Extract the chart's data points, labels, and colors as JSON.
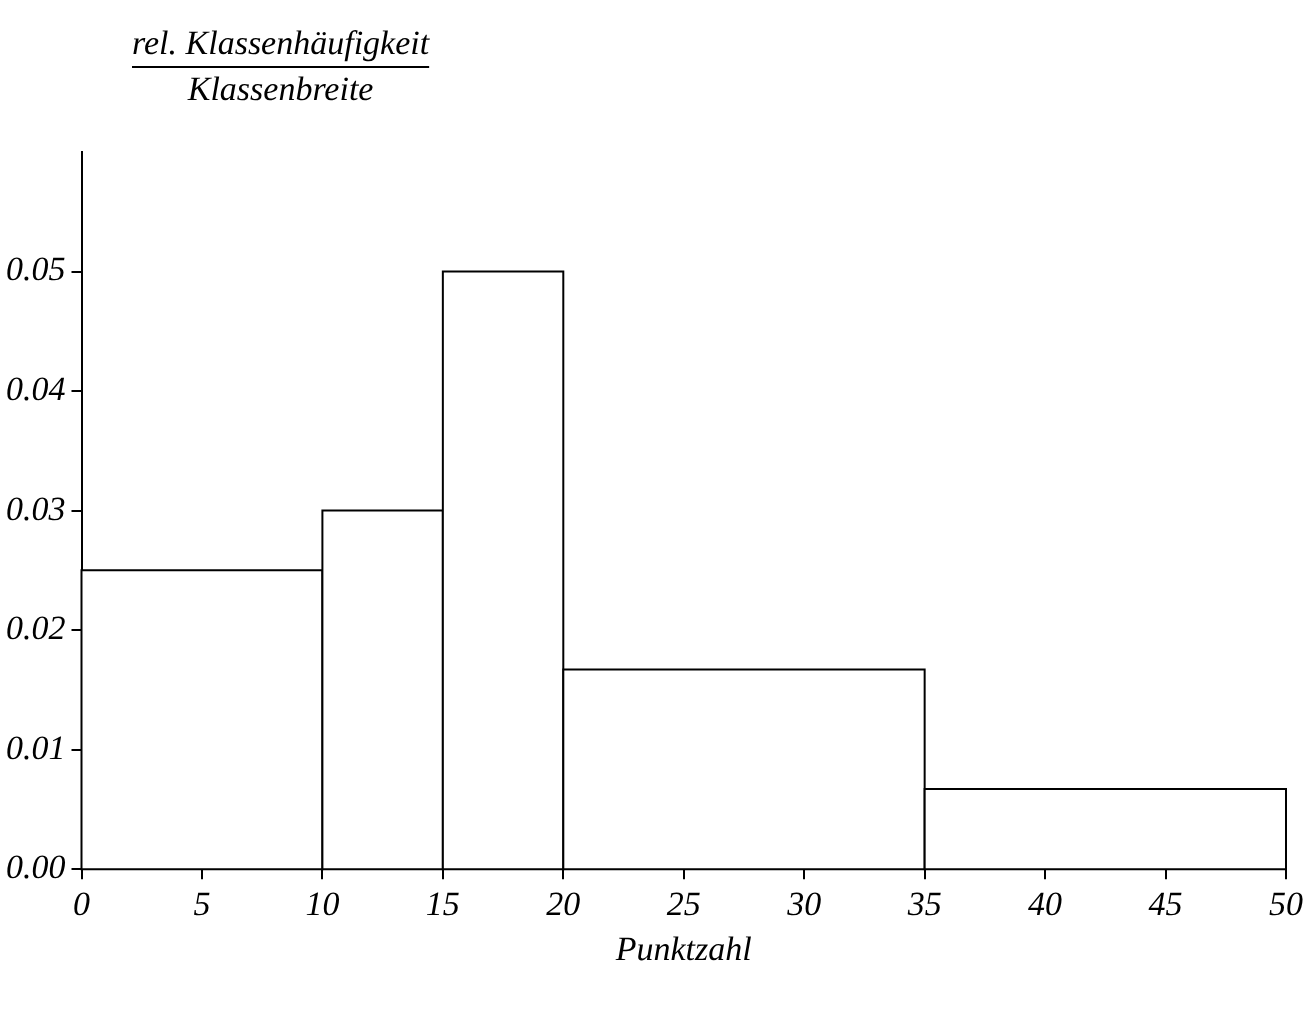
{
  "chart_data": {
    "type": "histogram",
    "ylabel": "rel. Klassenhäufigkeit Klassenbreite",
    "xlabel": "Punktzahl",
    "bins": [
      0,
      10,
      15,
      20,
      35,
      50
    ],
    "values": [
      0.025,
      0.03,
      0.05,
      0.0167,
      0.0067
    ],
    "color": "#ffffff",
    "xlim": [
      0,
      50
    ],
    "xticks": [
      0,
      5,
      10,
      15,
      20,
      25,
      30,
      35,
      40,
      45,
      50
    ],
    "ylim": [
      0,
      0.06
    ],
    "yticks": [
      {
        "value": 0,
        "label": "0.00"
      },
      {
        "value": 0.01,
        "label": "0.01"
      },
      {
        "value": 0.02,
        "label": "0.02"
      },
      {
        "value": 0.03,
        "label": "0.03"
      },
      {
        "value": 0.04,
        "label": "0.04"
      },
      {
        "value": 0.05,
        "label": "0.05"
      }
    ],
    "grid": false,
    "legend": false
  }
}
